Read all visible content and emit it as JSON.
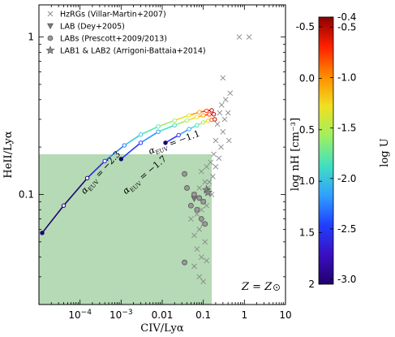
{
  "chart_data": {
    "type": "scatter",
    "xlabel": "CIV/Lyα",
    "ylabel": "HeII/Lyα",
    "xscale": "log",
    "yscale": "log",
    "xlim": [
      1e-05,
      10
    ],
    "ylim": [
      0.02,
      1.6
    ],
    "x_ticks": [
      {
        "value": 0.0001,
        "label": "10^-4"
      },
      {
        "value": 0.001,
        "label": "10^-3"
      },
      {
        "value": 0.01,
        "label": "0.01"
      },
      {
        "value": 0.1,
        "label": "0.1"
      },
      {
        "value": 1,
        "label": "1"
      },
      {
        "value": 10,
        "label": "10"
      }
    ],
    "y_ticks": [
      {
        "value": 0.1,
        "label": "0.1"
      },
      {
        "value": 1,
        "label": "1"
      }
    ],
    "shaded_region": {
      "x": [
        1e-05,
        0.16
      ],
      "y": [
        0.02,
        0.18
      ],
      "color": "#a8d4a8"
    },
    "model_tracks": [
      {
        "label": "α_EUV = −2.3",
        "x": [
          1.2e-05,
          4e-05,
          0.00015,
          0.0004,
          0.0012,
          0.003,
          0.008,
          0.02,
          0.045,
          0.08,
          0.12,
          0.16
        ],
        "y": [
          0.057,
          0.085,
          0.127,
          0.163,
          0.205,
          0.24,
          0.27,
          0.295,
          0.318,
          0.333,
          0.34,
          0.342
        ],
        "colors": [
          "#1a0070",
          "#1a0070",
          "#1a0070",
          "#3322e0",
          "#2a7fff",
          "#36c8e8",
          "#55e8b0",
          "#9cf070",
          "#e8e020",
          "#ffa010",
          "#ff4010",
          "#c00000"
        ]
      },
      {
        "label": "α_EUV = −1.7",
        "x": [
          0.001,
          0.003,
          0.008,
          0.02,
          0.04,
          0.07,
          0.1,
          0.14,
          0.18
        ],
        "y": [
          0.168,
          0.213,
          0.25,
          0.275,
          0.295,
          0.31,
          0.318,
          0.322,
          0.323
        ],
        "colors": [
          "#1a0070",
          "#2a3aff",
          "#2a9aff",
          "#40e0c0",
          "#a0f060",
          "#f0e020",
          "#ffa010",
          "#ff3010",
          "#c00000"
        ]
      },
      {
        "label": "α_EUV = −1.1",
        "x": [
          0.012,
          0.025,
          0.045,
          0.07,
          0.1,
          0.13,
          0.16,
          0.19
        ],
        "y": [
          0.213,
          0.238,
          0.26,
          0.275,
          0.287,
          0.294,
          0.298,
          0.3
        ],
        "colors": [
          "#1a0070",
          "#3030ff",
          "#40a0ff",
          "#50e0c0",
          "#b0f050",
          "#f0d020",
          "#ff7010",
          "#c00000"
        ]
      }
    ],
    "series": [
      {
        "name": "HzRGs (Villar-Martin+2007)",
        "marker": "x",
        "x": [
          0.75,
          1.3,
          0.3,
          0.45,
          0.35,
          0.28,
          0.4,
          0.25,
          0.33,
          0.22,
          0.3,
          0.42,
          0.2,
          0.27,
          0.18,
          0.24,
          0.15,
          0.12,
          0.2,
          0.17,
          0.14,
          0.09,
          0.11,
          0.13,
          0.16,
          0.08,
          0.1,
          0.06,
          0.12,
          0.09,
          0.07,
          0.05,
          0.1,
          0.08,
          0.06,
          0.11,
          0.07,
          0.09,
          0.12,
          0.06,
          0.08,
          0.1
        ],
        "y": [
          1.0,
          1.0,
          0.55,
          0.44,
          0.4,
          0.37,
          0.33,
          0.33,
          0.3,
          0.28,
          0.25,
          0.22,
          0.22,
          0.2,
          0.18,
          0.17,
          0.16,
          0.15,
          0.15,
          0.13,
          0.12,
          0.14,
          0.12,
          0.11,
          0.1,
          0.11,
          0.09,
          0.1,
          0.085,
          0.08,
          0.075,
          0.07,
          0.065,
          0.06,
          0.055,
          0.05,
          0.045,
          0.04,
          0.038,
          0.035,
          0.03,
          0.028
        ]
      },
      {
        "name": "LAB (Dey+2005)",
        "marker": "triangle-down",
        "x": [
          0.06
        ],
        "y": [
          0.094
        ]
      },
      {
        "name": "LABs (Prescott+2009/2013)",
        "marker": "circle",
        "x": [
          0.035,
          0.04,
          0.06,
          0.08,
          0.1,
          0.05,
          0.07,
          0.09,
          0.11,
          0.035
        ],
        "y": [
          0.135,
          0.11,
          0.1,
          0.095,
          0.09,
          0.085,
          0.08,
          0.07,
          0.065,
          0.037
        ]
      },
      {
        "name": "LAB1 & LAB2 (Arrigoni-Battaia+2014)",
        "marker": "star",
        "x": [
          0.12,
          0.13
        ],
        "y": [
          0.107,
          0.103
        ]
      }
    ],
    "annotations": [
      {
        "text": "α",
        "sub": "EUV",
        "rest": " = −2.3",
        "x": 0.00013,
        "y": 0.1,
        "rotate": -48
      },
      {
        "text": "α",
        "sub": "EUV",
        "rest": " = −1.7",
        "x": 0.0013,
        "y": 0.1,
        "rotate": -40
      },
      {
        "text": "α",
        "sub": "EUV",
        "rest": " = −1.1",
        "x": 0.005,
        "y": 0.18,
        "rotate": -20
      }
    ],
    "corner_text": "Z = Z",
    "legend_position": "upper-left",
    "colorbar": {
      "left_label": "log n_H [cm^-3]",
      "right_label": "log U",
      "left_ticks": [
        "-0.5",
        "0.0",
        "0.5",
        "1.0",
        "1.5",
        "2"
      ],
      "right_ticks": [
        "-0.4",
        "-0.5",
        "-1.0",
        "-1.5",
        "-2.0",
        "-2.5",
        "-3.0"
      ],
      "colors": [
        "#8b0000",
        "#ff2000",
        "#ff8c00",
        "#f0e020",
        "#a0f060",
        "#40e0c0",
        "#30a0ff",
        "#2040ff",
        "#3a10c0",
        "#20006a"
      ]
    }
  }
}
